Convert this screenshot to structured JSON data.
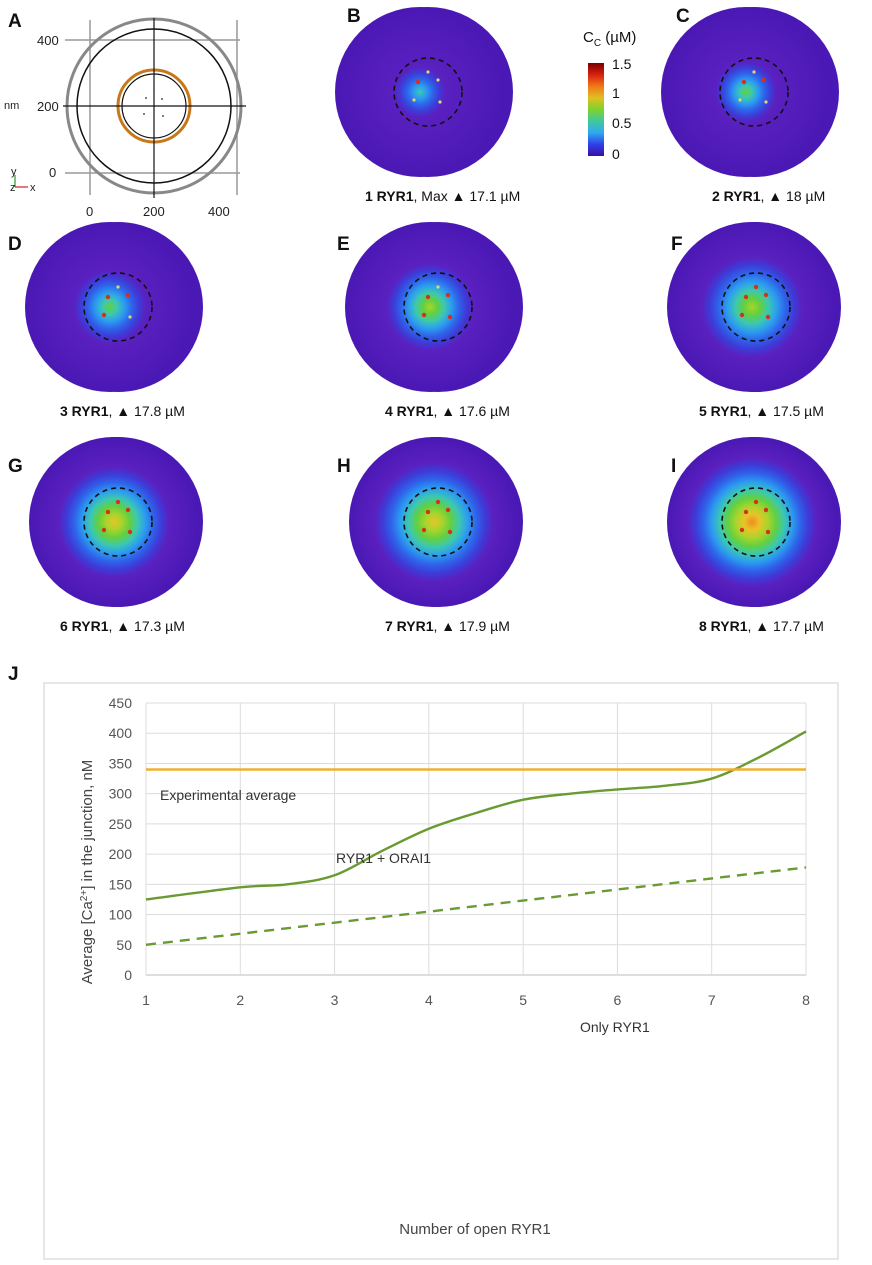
{
  "panel_labels": [
    "A",
    "B",
    "C",
    "D",
    "E",
    "F",
    "G",
    "H",
    "I",
    "J"
  ],
  "panel_a": {
    "x_ticks": [
      "0",
      "200",
      "400"
    ],
    "y_ticks": [
      "400",
      "200",
      "0"
    ],
    "y_unit": "nm",
    "axis_y": "y",
    "axis_z": "z",
    "axis_x": "x"
  },
  "colorbar": {
    "title_main": "C",
    "title_sub": "C",
    "title_unit": " (µM)",
    "ticks": [
      "1.5",
      "1",
      "0.5",
      "0"
    ],
    "colors": [
      "#3a10a0",
      "#3040e8",
      "#30a8f0",
      "#40c8a0",
      "#7ed22c",
      "#e0c020",
      "#f07818",
      "#d82010",
      "#7a0000"
    ]
  },
  "simulations": [
    {
      "count": "1",
      "unit": " RYR1",
      "sep": ", Max ",
      "symbol": "▲",
      "value": " 17.1 µM",
      "n": 1,
      "level": 0.05
    },
    {
      "count": "2",
      "unit": " RYR1",
      "sep": ",   ",
      "symbol": "▲",
      "value": " 18 µM",
      "n": 2,
      "level": 0.15
    },
    {
      "count": "3",
      "unit": " RYR1",
      "sep": ",   ",
      "symbol": "▲",
      "value": " 17.8 µM",
      "n": 3,
      "level": 0.3
    },
    {
      "count": "4",
      "unit": " RYR1",
      "sep": ",   ",
      "symbol": "▲",
      "value": " 17.6 µM",
      "n": 4,
      "level": 0.45
    },
    {
      "count": "5",
      "unit": " RYR1",
      "sep": ",   ",
      "symbol": "▲",
      "value": " 17.5 µM",
      "n": 5,
      "level": 0.62
    },
    {
      "count": "6",
      "unit": " RYR1",
      "sep": ",   ",
      "symbol": "▲",
      "value": " 17.3 µM",
      "n": 6,
      "level": 0.72
    },
    {
      "count": "7",
      "unit": " RYR1",
      "sep": ",   ",
      "symbol": "▲",
      "value": " 17.9 µM",
      "n": 7,
      "level": 0.82
    },
    {
      "count": "8",
      "unit": " RYR1",
      "sep": ",   ",
      "symbol": "▲",
      "value": " 17.7 µM",
      "n": 8,
      "level": 0.92
    }
  ],
  "chart_data": {
    "type": "line",
    "title": "",
    "xlabel": "Number of open RYR1",
    "ylabel_pre": "Average  [Ca",
    "ylabel_sup": "2+",
    "ylabel_post": "] in the junction, nM",
    "xlim": [
      1,
      8
    ],
    "ylim": [
      0,
      450
    ],
    "x_ticks": [
      1,
      2,
      3,
      4,
      5,
      6,
      7,
      8
    ],
    "y_ticks": [
      0,
      50,
      100,
      150,
      200,
      250,
      300,
      350,
      400,
      450
    ],
    "grid": true,
    "series": [
      {
        "name": "RYR1 + ORAI1",
        "style": "solid",
        "color": "#6a9a32",
        "x": [
          1,
          2,
          2.5,
          3,
          3.5,
          4,
          4.5,
          5,
          5.5,
          6,
          6.5,
          7,
          7.5,
          8
        ],
        "y": [
          125,
          145,
          150,
          165,
          205,
          242,
          268,
          290,
          300,
          307,
          313,
          325,
          360,
          403
        ]
      },
      {
        "name": "Only RYR1",
        "style": "dashed",
        "color": "#6a9a32",
        "x": [
          1,
          8
        ],
        "y": [
          50,
          178
        ]
      },
      {
        "name": "Experimental average",
        "style": "solid",
        "color": "#f0b030",
        "x": [
          1,
          8
        ],
        "y": [
          340,
          340
        ]
      }
    ],
    "annotations": [
      "Experimental average",
      "RYR1 + ORAI1",
      "Only RYR1"
    ]
  }
}
